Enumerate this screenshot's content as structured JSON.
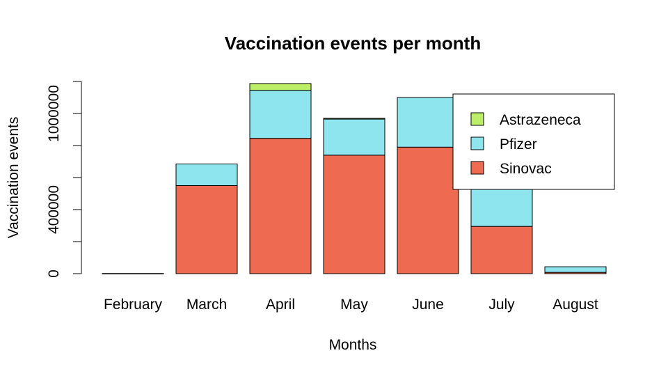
{
  "chart_data": {
    "type": "bar",
    "stacked": true,
    "title": "Vaccination events per month",
    "xlabel": "Months",
    "ylabel": "Vaccination events",
    "categories": [
      "February",
      "March",
      "April",
      "May",
      "June",
      "July",
      "August"
    ],
    "series": [
      {
        "name": "Sinovac",
        "color": "#EE6A50",
        "values": [
          1000,
          550000,
          845000,
          740000,
          790000,
          295000,
          8000
        ]
      },
      {
        "name": "Pfizer",
        "color": "#8EE5EE",
        "values": [
          0,
          135000,
          300000,
          225000,
          310000,
          410000,
          35000
        ]
      },
      {
        "name": "Astrazeneca",
        "color": "#BCEE68",
        "values": [
          0,
          0,
          42000,
          5000,
          0,
          0,
          0
        ]
      }
    ],
    "ylim": [
      0,
      1200000
    ],
    "yticks": [
      0,
      200000,
      400000,
      600000,
      800000,
      1000000,
      1200000
    ],
    "ytick_labels": [
      "0",
      "",
      "400000",
      "",
      "",
      "1000000",
      ""
    ],
    "legend": {
      "position": "top-right",
      "entries": [
        "Astrazeneca",
        "Pfizer",
        "Sinovac"
      ]
    },
    "grid": false
  }
}
